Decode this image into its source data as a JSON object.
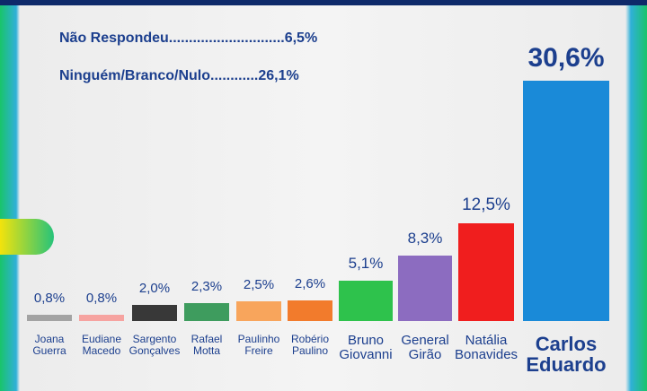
{
  "chart_data": {
    "type": "bar",
    "notes": [
      "Não Respondeu.............................6,5%",
      "Ninguém/Branco/Nulo............26,1%"
    ],
    "categories": [
      "Joana Guerra",
      "Eudiane Macedo",
      "Sargento Gonçalves",
      "Rafael Motta",
      "Paulinho Freire",
      "Robério Paulino",
      "Bruno Giovanni",
      "General Girão",
      "Natália Bonavides",
      "Carlos Eduardo"
    ],
    "values": [
      0.8,
      0.8,
      2.0,
      2.3,
      2.5,
      2.6,
      5.1,
      8.3,
      12.5,
      30.6
    ],
    "value_labels": [
      "0,8%",
      "0,8%",
      "2,0%",
      "2,3%",
      "2,5%",
      "2,6%",
      "5,1%",
      "8,3%",
      "12,5%",
      "30,6%"
    ],
    "colors": [
      "#a3a3a3",
      "#f6a3a0",
      "#383838",
      "#3e9c5e",
      "#f8a55c",
      "#f27b2c",
      "#2ec24c",
      "#8c6cc0",
      "#f01e1e",
      "#1a8ad8"
    ]
  }
}
